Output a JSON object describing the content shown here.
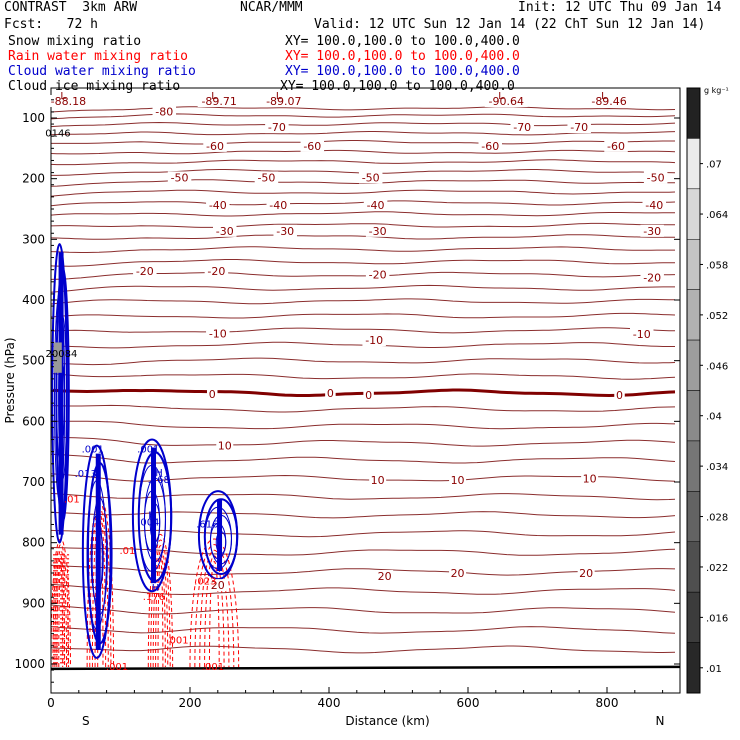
{
  "header": {
    "model": "CONTRAST  3km ARW",
    "org": "NCAR/MMM",
    "init": "Init: 12 UTC Thu 09 Jan 14",
    "fcst": "Fcst:   72 h",
    "valid": "Valid: 12 UTC Sun 12 Jan 14 (22 ChT Sun 12 Jan 14)",
    "fields": [
      {
        "label": "Snow mixing ratio",
        "xy": "XY= 100.0,100.0 to 100.0,400.0",
        "color": "#000000"
      },
      {
        "label": "Rain water mixing ratio",
        "xy": "XY= 100.0,100.0 to 100.0,400.0",
        "color": "#ff0000"
      },
      {
        "label": "Cloud water mixing ratio",
        "xy": "XY= 100.0,100.0 to 100.0,400.0",
        "color": "#0000cc"
      },
      {
        "label": "Cloud ice mixing ratio",
        "xy": "XY= 100.0,100.0 to 100.0,400.0",
        "color": "#000000"
      }
    ]
  },
  "chart_data": {
    "type": "contour",
    "xlabel": "Distance (km)",
    "ylabel": "Pressure (hPa)",
    "xlim": [
      0,
      910
    ],
    "ylim": [
      1045,
      50
    ],
    "xticks": [
      0,
      200,
      400,
      600,
      800
    ],
    "yticks": [
      100,
      200,
      300,
      400,
      500,
      600,
      700,
      800,
      900,
      1000
    ],
    "x_end_labels": {
      "left": "S",
      "right": "N"
    },
    "colorbar": {
      "unit": "g kg⁻¹",
      "tick_labels": [
        ".07",
        ".064",
        ".058",
        ".052",
        ".046",
        ".04",
        ".034",
        ".028",
        ".022",
        ".016",
        ".01"
      ],
      "tick_values": [
        0.07,
        0.064,
        0.058,
        0.052,
        0.046,
        0.04,
        0.034,
        0.028,
        0.022,
        0.016,
        0.01
      ],
      "range": [
        0.007,
        0.079
      ]
    },
    "temperature_labels": [
      {
        "text": "-88.18",
        "x": 25,
        "p": 72
      },
      {
        "text": "-89.71",
        "x": 242,
        "p": 72
      },
      {
        "text": "-89.07",
        "x": 335,
        "p": 72
      },
      {
        "text": "-90.64",
        "x": 655,
        "p": 72
      },
      {
        "text": "-89.46",
        "x": 803,
        "p": 72
      },
      {
        "text": "-80",
        "x": 163,
        "p": 89
      },
      {
        "text": "-70",
        "x": 325,
        "p": 115
      },
      {
        "text": "-70",
        "x": 678,
        "p": 115
      },
      {
        "text": "-70",
        "x": 760,
        "p": 115
      },
      {
        "text": "-60",
        "x": 236,
        "p": 146
      },
      {
        "text": "-60",
        "x": 376,
        "p": 146
      },
      {
        "text": "-60",
        "x": 632,
        "p": 146
      },
      {
        "text": "-60",
        "x": 813,
        "p": 146
      },
      {
        "text": "-50",
        "x": 185,
        "p": 198
      },
      {
        "text": "-50",
        "x": 310,
        "p": 198
      },
      {
        "text": "-50",
        "x": 460,
        "p": 198
      },
      {
        "text": "-50",
        "x": 870,
        "p": 198
      },
      {
        "text": "-40",
        "x": 240,
        "p": 243
      },
      {
        "text": "-40",
        "x": 327,
        "p": 243
      },
      {
        "text": "-40",
        "x": 467,
        "p": 243
      },
      {
        "text": "-40",
        "x": 868,
        "p": 243
      },
      {
        "text": "-30",
        "x": 250,
        "p": 286
      },
      {
        "text": "-30",
        "x": 337,
        "p": 286
      },
      {
        "text": "-30",
        "x": 470,
        "p": 286
      },
      {
        "text": "-30",
        "x": 865,
        "p": 286
      },
      {
        "text": "-20",
        "x": 135,
        "p": 352
      },
      {
        "text": "-20",
        "x": 238,
        "p": 352
      },
      {
        "text": "-20",
        "x": 470,
        "p": 358
      },
      {
        "text": "-20",
        "x": 865,
        "p": 363
      },
      {
        "text": "-10",
        "x": 240,
        "p": 455
      },
      {
        "text": "-10",
        "x": 465,
        "p": 466
      },
      {
        "text": "-10",
        "x": 850,
        "p": 456
      },
      {
        "text": "0",
        "x": 232,
        "p": 555
      },
      {
        "text": "0",
        "x": 402,
        "p": 553
      },
      {
        "text": "0",
        "x": 457,
        "p": 557
      },
      {
        "text": "0",
        "x": 818,
        "p": 557
      },
      {
        "text": "10",
        "x": 250,
        "p": 640
      },
      {
        "text": "10",
        "x": 470,
        "p": 697
      },
      {
        "text": "10",
        "x": 585,
        "p": 697
      },
      {
        "text": "10",
        "x": 775,
        "p": 694
      },
      {
        "text": "20",
        "x": 240,
        "p": 870
      },
      {
        "text": "20",
        "x": 480,
        "p": 855
      },
      {
        "text": "20",
        "x": 585,
        "p": 850
      },
      {
        "text": "20",
        "x": 770,
        "p": 850
      }
    ],
    "mixing_ratio_labels": [
      {
        "text": "0146",
        "x": 10,
        "p": 124,
        "color": "#000000"
      },
      {
        "text": "20084",
        "x": 15,
        "p": 487,
        "color": "#000000"
      },
      {
        "text": ".001",
        "x": 60,
        "p": 645,
        "color": "#0000cc"
      },
      {
        "text": ".001",
        "x": 140,
        "p": 645,
        "color": "#0000cc"
      },
      {
        "text": ".768",
        "x": 155,
        "p": 695,
        "color": "#0000cc"
      },
      {
        "text": ".013",
        "x": 50,
        "p": 685,
        "color": "#0000cc"
      },
      {
        "text": ".004",
        "x": 140,
        "p": 765,
        "color": "#0000cc"
      },
      {
        "text": ".616",
        "x": 225,
        "p": 768,
        "color": "#0000cc"
      },
      {
        "text": ".01",
        "x": 30,
        "p": 727,
        "color": "#ff0000"
      },
      {
        "text": ".176",
        "x": 148,
        "p": 888,
        "color": "#ff0000"
      },
      {
        "text": ".023",
        "x": 222,
        "p": 862,
        "color": "#ff0000"
      },
      {
        "text": ".001",
        "x": 182,
        "p": 960,
        "color": "#ff0000"
      },
      {
        "text": ".001",
        "x": 95,
        "p": 1003,
        "color": "#ff0000"
      },
      {
        "text": ".001",
        "x": 233,
        "p": 1003,
        "color": "#ff0000"
      },
      {
        "text": ".01",
        "x": 110,
        "p": 812,
        "color": "#ff0000"
      }
    ],
    "cloud_cells_km": [
      {
        "x0": 4,
        "x1": 25,
        "p0": 308,
        "p1": 800
      },
      {
        "x0": 48,
        "x1": 88,
        "p0": 640,
        "p1": 990
      },
      {
        "x0": 120,
        "x1": 175,
        "p0": 630,
        "p1": 880
      },
      {
        "x0": 215,
        "x1": 270,
        "p0": 715,
        "p1": 860
      }
    ],
    "rain_cells_km": [
      {
        "x0": 0,
        "x1": 28,
        "p0": 740,
        "p1": 1005
      },
      {
        "x0": 52,
        "x1": 90,
        "p0": 650,
        "p1": 1005
      },
      {
        "x0": 140,
        "x1": 175,
        "p0": 730,
        "p1": 1005
      },
      {
        "x0": 200,
        "x1": 270,
        "p0": 740,
        "p1": 1005
      }
    ]
  }
}
